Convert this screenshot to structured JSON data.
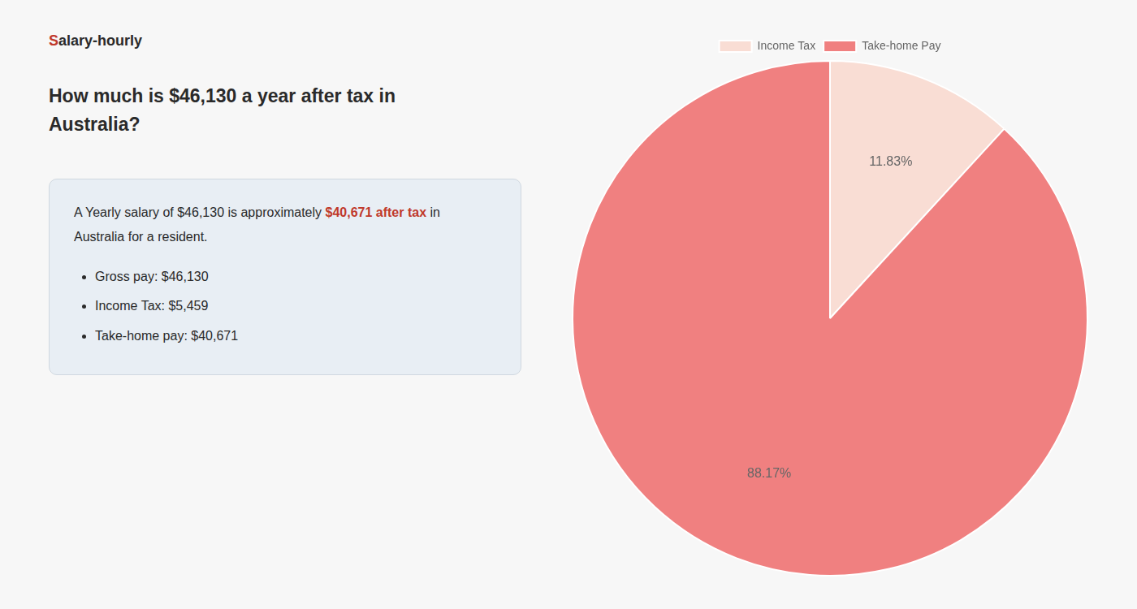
{
  "chart_data": {
    "type": "pie",
    "title": "How much is $46,130 a year after tax in\nAustralia?",
    "categories": [
      "Income Tax",
      "Take-home Pay"
    ],
    "values": [
      11.83,
      88.17
    ],
    "value_labels": [
      "11.83%",
      "88.17%"
    ],
    "colors": [
      "#f9ddd4",
      "#f08080"
    ],
    "data_labels": true,
    "legend": "top",
    "annotations": [
      [
        {
          "text": "S",
          "color": "#c0392b"
        },
        {
          "text": "alary-hourly"
        }
      ],
      [
        {
          "text": "A Yearly salary of $46,130 is approximately "
        },
        {
          "text": "$40,671 after tax",
          "color": "#c0392b"
        },
        {
          "text": " in"
        }
      ],
      [
        {
          "text": "Australia for a resident."
        }
      ],
      [
        {
          "text": "Gross pay: $46,130",
          "marker": "bullet"
        }
      ],
      [
        {
          "text": "Income Tax: $5,459",
          "marker": "bullet"
        }
      ],
      [
        {
          "text": "Take-home pay: $40,671",
          "marker": "bullet"
        }
      ]
    ]
  }
}
